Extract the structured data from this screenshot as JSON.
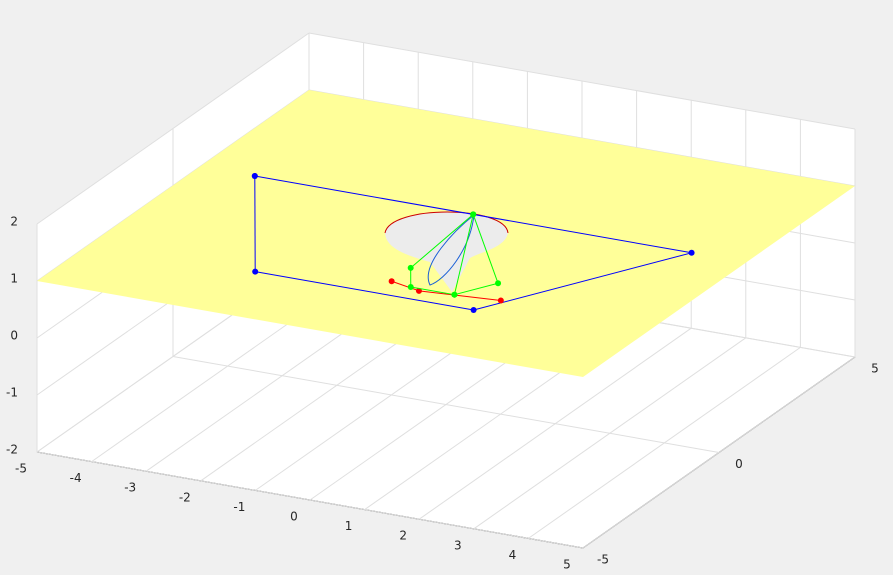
{
  "chart_data": {
    "type": "plot3",
    "xlim": [
      -5,
      5
    ],
    "ylim": [
      -5,
      5
    ],
    "zlim": [
      -2,
      2
    ],
    "xticks": [
      -5,
      -4,
      -3,
      -2,
      -1,
      0,
      1,
      2,
      3,
      4,
      5
    ],
    "yticks": [
      -5,
      0,
      5
    ],
    "zticks": [
      -2,
      -1,
      0,
      1,
      2
    ],
    "grid": true,
    "surfaces": [
      {
        "z": 1,
        "color": "#ffff99"
      }
    ],
    "series": [
      {
        "color": "#0000ff",
        "x": [
          -4,
          -2,
          2,
          4,
          -4
        ],
        "y": [
          1,
          -3,
          -3,
          1,
          1
        ],
        "z": [
          1,
          1,
          1,
          1,
          1
        ]
      },
      {
        "color": "#ff0000",
        "x": [
          0.2,
          0.8,
          2.2
        ],
        "y": [
          -2.4,
          -2.6,
          -2.4
        ],
        "z": [
          1,
          1,
          1
        ]
      },
      {
        "color": "#00ff00",
        "x": [
          0,
          0.2,
          0.6,
          1.4,
          1.8,
          0,
          1.4
        ],
        "y": [
          1,
          -1.7,
          -2.5,
          -2.5,
          -1.7,
          1,
          -2.5
        ],
        "z": [
          1,
          1,
          1,
          1,
          1,
          1,
          1
        ]
      }
    ]
  }
}
